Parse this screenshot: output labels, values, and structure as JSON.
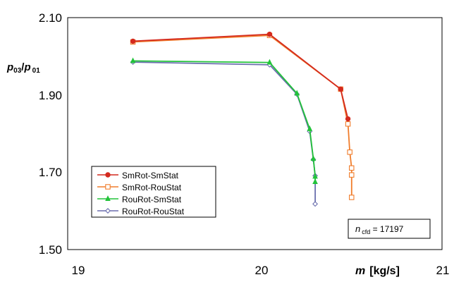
{
  "chart_data": {
    "type": "line",
    "title": "",
    "xlabel": {
      "var": "m",
      "unit": "[kg/s]"
    },
    "ylabel": {
      "num": "p",
      "num_sub": "03",
      "den": "p",
      "den_sub": "01"
    },
    "xlim": [
      19,
      21
    ],
    "ylim": [
      1.5,
      2.1
    ],
    "xticks": [
      "19",
      "20",
      "21"
    ],
    "yticks": [
      "2.10",
      "1.90",
      "1.70",
      "1.50"
    ],
    "grid": false,
    "legend_position": "bottom-left",
    "annotation": {
      "var": "n",
      "sub": "cfd",
      "rest": " = 17197"
    },
    "series": [
      {
        "name": "SmRot-SmStat",
        "color": "#d42a1e",
        "marker": "circle-filled",
        "x": [
          19.3,
          20.05,
          20.44,
          20.48
        ],
        "y": [
          2.039,
          2.057,
          1.915,
          1.838
        ]
      },
      {
        "name": "SmRot-RouStat",
        "color": "#f07d2c",
        "marker": "square-open",
        "x": [
          19.3,
          20.05,
          20.44,
          20.48,
          20.49,
          20.5,
          20.5,
          20.5
        ],
        "y": [
          2.037,
          2.054,
          1.915,
          1.825,
          1.752,
          1.711,
          1.693,
          1.635
        ]
      },
      {
        "name": "RouRot-SmStat",
        "color": "#22c33a",
        "marker": "triangle-filled",
        "x": [
          19.3,
          20.05,
          20.2,
          20.27,
          20.29,
          20.3,
          20.3
        ],
        "y": [
          1.988,
          1.984,
          1.904,
          1.812,
          1.735,
          1.689,
          1.675
        ]
      },
      {
        "name": "RouRot-RouStat",
        "color": "#6b6fae",
        "marker": "diamond-open",
        "x": [
          19.3,
          20.05,
          20.2,
          20.27,
          20.29,
          20.3,
          20.3
        ],
        "y": [
          1.985,
          1.978,
          1.902,
          1.806,
          1.733,
          1.691,
          1.618
        ]
      }
    ]
  }
}
